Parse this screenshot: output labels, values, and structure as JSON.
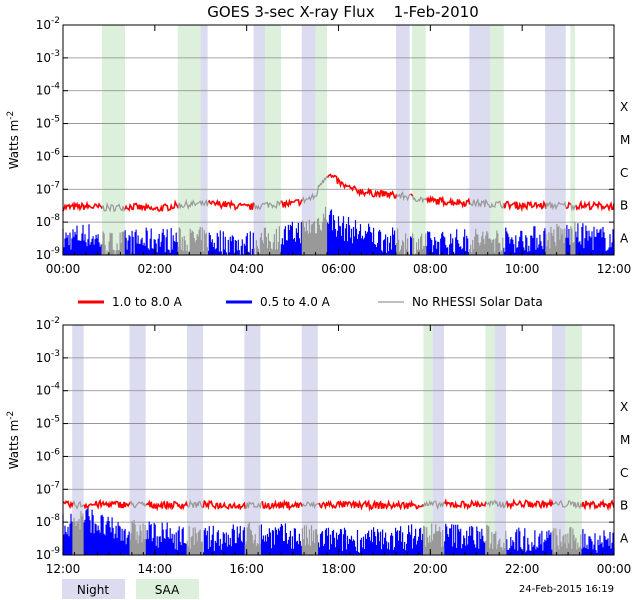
{
  "colors": {
    "series_1_8": "#ff0000",
    "series_05_4": "#0000ff",
    "no_rhessi": "#999999",
    "night": "#dcdcf0",
    "saa": "#dcf0dc",
    "grid": "#888888"
  },
  "footer": {
    "night_label": "Night",
    "saa_label": "SAA",
    "timestamp": "24-Feb-2015 16:19"
  },
  "chart_data": [
    {
      "type": "line",
      "title": "GOES 3-sec X-ray Flux    1-Feb-2010",
      "ylabel": "Watts m",
      "ylabel_sup": "-2",
      "yscale": "log",
      "ylim": [
        1e-09,
        0.01
      ],
      "y_ticks": [
        {
          "mantissa": "10",
          "exp": "-9"
        },
        {
          "mantissa": "10",
          "exp": "-8"
        },
        {
          "mantissa": "10",
          "exp": "-7"
        },
        {
          "mantissa": "10",
          "exp": "-6"
        },
        {
          "mantissa": "10",
          "exp": "-5"
        },
        {
          "mantissa": "10",
          "exp": "-4"
        },
        {
          "mantissa": "10",
          "exp": "-3"
        },
        {
          "mantissa": "10",
          "exp": "-2"
        }
      ],
      "class_labels": [
        "A",
        "B",
        "C",
        "M",
        "X"
      ],
      "xlim": [
        "00:00",
        "12:00"
      ],
      "x_ticks": [
        "00:00",
        "02:00",
        "04:00",
        "06:00",
        "08:00",
        "10:00",
        "12:00"
      ],
      "grid": true,
      "night_intervals": [
        [
          2.9,
          3.15
        ],
        [
          4.15,
          4.4
        ],
        [
          5.2,
          5.5
        ],
        [
          7.25,
          7.55
        ],
        [
          8.85,
          9.3
        ],
        [
          10.5,
          10.95
        ]
      ],
      "saa_intervals": [
        [
          0.85,
          1.35
        ],
        [
          2.5,
          3.0
        ],
        [
          4.4,
          4.75
        ],
        [
          5.5,
          5.75
        ],
        [
          7.6,
          7.9
        ],
        [
          9.3,
          9.6
        ],
        [
          11.05,
          11.15
        ]
      ],
      "series": [
        {
          "name": "1.0 to 8.0 A",
          "color": "#ff0000",
          "x": [
            0,
            0.5,
            1.0,
            1.5,
            2.0,
            2.5,
            3.0,
            3.5,
            4.0,
            4.5,
            5.0,
            5.5,
            5.6,
            5.75,
            5.9,
            6.1,
            6.3,
            6.6,
            7.0,
            7.5,
            8.0,
            9.0,
            10.0,
            11.0,
            12.0
          ],
          "values": [
            2.8e-08,
            3e-08,
            2.7e-08,
            3e-08,
            2.4e-08,
            3.3e-08,
            3.6e-08,
            3.5e-08,
            2.8e-08,
            3.5e-08,
            3.6e-08,
            6e-08,
            1.5e-07,
            2.8e-07,
            2.2e-07,
            1.3e-07,
            1e-07,
            8e-08,
            7e-08,
            6e-08,
            4.5e-08,
            3.8e-08,
            3.2e-08,
            3.2e-08,
            3.1e-08
          ]
        },
        {
          "name": "0.5 to 4.0 A",
          "color": "#0000ff",
          "x": [
            0,
            0.5,
            1.0,
            2.0,
            3.0,
            4.0,
            5.0,
            5.5,
            5.75,
            6.0,
            7.0,
            8.0,
            9.0,
            10.0,
            11.0,
            12.0
          ],
          "values": [
            2e-09,
            3e-09,
            1.5e-09,
            2e-09,
            2e-09,
            1.5e-09,
            3e-09,
            6e-09,
            1.2e-08,
            5e-09,
            2e-09,
            1.5e-09,
            2e-09,
            2e-09,
            3e-09,
            2e-09
          ]
        },
        {
          "name": "No RHESSI Solar Data",
          "color": "#999999"
        }
      ]
    },
    {
      "type": "line",
      "ylabel": "Watts m",
      "ylabel_sup": "-2",
      "yscale": "log",
      "ylim": [
        1e-09,
        0.01
      ],
      "y_ticks": [
        {
          "mantissa": "10",
          "exp": "-9"
        },
        {
          "mantissa": "10",
          "exp": "-8"
        },
        {
          "mantissa": "10",
          "exp": "-7"
        },
        {
          "mantissa": "10",
          "exp": "-6"
        },
        {
          "mantissa": "10",
          "exp": "-5"
        },
        {
          "mantissa": "10",
          "exp": "-4"
        },
        {
          "mantissa": "10",
          "exp": "-3"
        },
        {
          "mantissa": "10",
          "exp": "-2"
        }
      ],
      "class_labels": [
        "A",
        "B",
        "C",
        "M",
        "X"
      ],
      "xlim": [
        "12:00",
        "00:00"
      ],
      "x_ticks": [
        "12:00",
        "14:00",
        "16:00",
        "18:00",
        "20:00",
        "22:00",
        "00:00"
      ],
      "grid": true,
      "night_intervals": [
        [
          12.2,
          12.45
        ],
        [
          13.45,
          13.8
        ],
        [
          14.7,
          15.05
        ],
        [
          15.95,
          16.3
        ],
        [
          17.2,
          17.55
        ],
        [
          20.05,
          20.3
        ],
        [
          21.4,
          21.65
        ],
        [
          22.65,
          22.95
        ]
      ],
      "saa_intervals": [
        [
          19.85,
          20.05
        ],
        [
          21.2,
          21.4
        ],
        [
          22.95,
          23.3
        ]
      ],
      "series": [
        {
          "name": "1.0 to 8.0 A",
          "color": "#ff0000",
          "x": [
            12,
            13,
            14,
            15,
            16,
            17,
            18,
            19,
            20,
            21,
            22,
            23,
            24
          ],
          "values": [
            3.3e-08,
            3.5e-08,
            3.3e-08,
            3.4e-08,
            3.2e-08,
            3.3e-08,
            3.4e-08,
            3.2e-08,
            3.4e-08,
            3.5e-08,
            3.6e-08,
            3.5e-08,
            3.4e-08
          ]
        },
        {
          "name": "0.5 to 4.0 A",
          "color": "#0000ff",
          "x": [
            12,
            12.5,
            13,
            14,
            15,
            16,
            17,
            18,
            19,
            20,
            21,
            22,
            23,
            24
          ],
          "values": [
            5e-09,
            1e-08,
            4e-09,
            3e-09,
            2e-09,
            3e-09,
            2.5e-09,
            2e-09,
            2e-09,
            3e-09,
            2.5e-09,
            2e-09,
            2e-09,
            2e-09
          ]
        },
        {
          "name": "No RHESSI Solar Data",
          "color": "#999999"
        }
      ]
    }
  ]
}
